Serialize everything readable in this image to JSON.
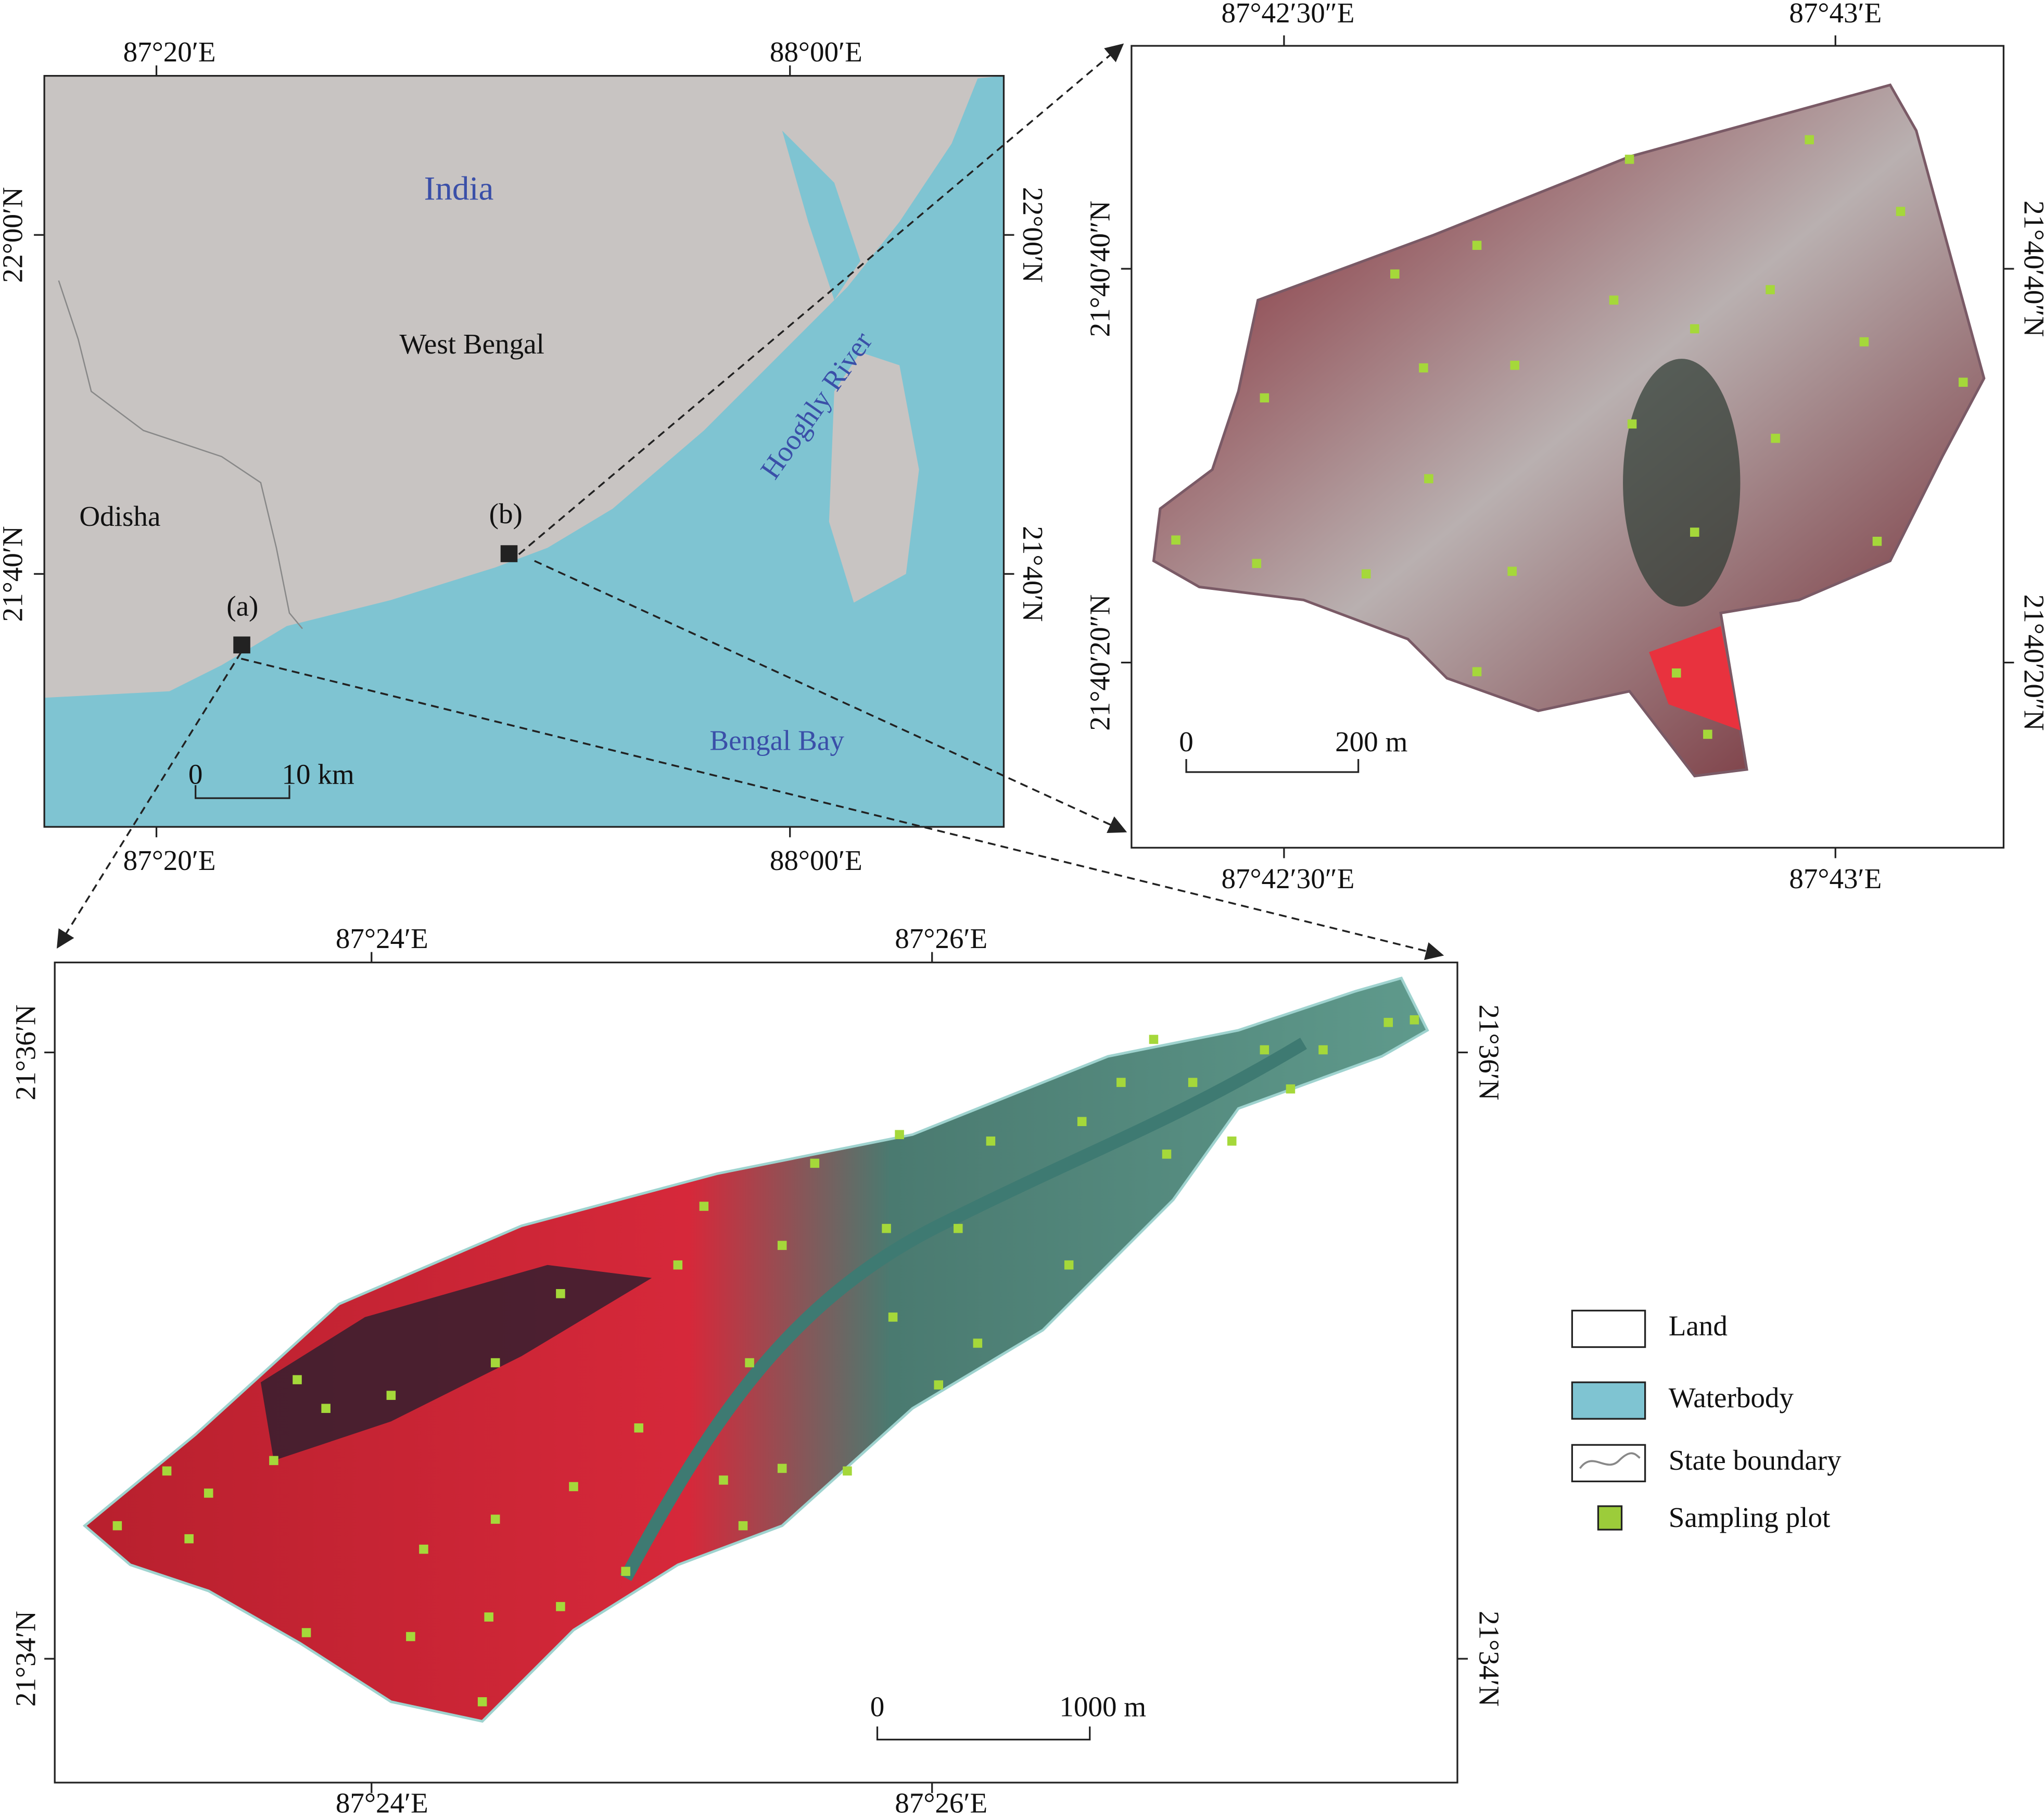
{
  "overview_map": {
    "top_labels": [
      "87°20′E",
      "88°00′E"
    ],
    "bottom_labels": [
      "87°20′E",
      "88°00′E"
    ],
    "left_labels": [
      "22°00′N",
      "21°40′N"
    ],
    "right_labels": [
      "22°00′N",
      "21°40′N"
    ],
    "place_labels": {
      "india": "India",
      "west_bengal": "West Bengal",
      "odisha": "Odisha",
      "river": "Hooghly River",
      "bay": "Bengal Bay"
    },
    "site_labels": [
      "(a)",
      "(b)"
    ],
    "scale": {
      "start": "0",
      "end": "10 km"
    }
  },
  "inset_b": {
    "top_labels": [
      "87°42′30″E",
      "87°43′E"
    ],
    "bottom_labels": [
      "87°42′30″E",
      "87°43′E"
    ],
    "left_labels": [
      "21°40′40″N",
      "21°40′20″N"
    ],
    "right_labels": [
      "21°40′40″N",
      "21°40′20″N"
    ],
    "scale": {
      "start": "0",
      "end": "200 m"
    }
  },
  "inset_a": {
    "top_labels": [
      "87°24′E",
      "87°26′E"
    ],
    "bottom_labels": [
      "87°24′E",
      "87°26′E"
    ],
    "left_labels": [
      "21°36′N",
      "21°34′N"
    ],
    "right_labels": [
      "21°36′N",
      "21°34′N"
    ],
    "scale": {
      "start": "0",
      "end": "1000 m"
    }
  },
  "legend": [
    "Land",
    "Waterbody",
    "State boundary",
    "Sampling plot"
  ]
}
